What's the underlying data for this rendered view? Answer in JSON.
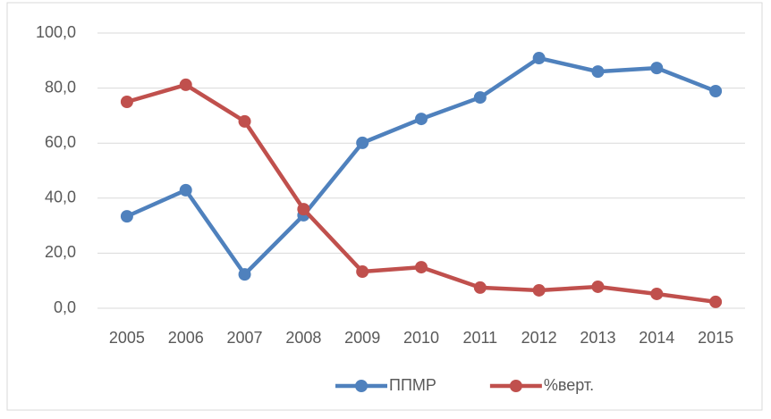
{
  "chart_data": {
    "type": "line",
    "categories": [
      "2005",
      "2006",
      "2007",
      "2008",
      "2009",
      "2010",
      "2011",
      "2012",
      "2013",
      "2014",
      "2015"
    ],
    "series": [
      {
        "name": "ППМР",
        "color": "#4f81bd",
        "values": [
          33.4,
          42.9,
          12.3,
          33.8,
          60.1,
          68.8,
          76.6,
          90.9,
          86.0,
          87.3,
          78.9
        ]
      },
      {
        "name": "%верт.",
        "color": "#c0504d",
        "values": [
          75.0,
          81.2,
          67.9,
          36.0,
          13.3,
          14.9,
          7.5,
          6.5,
          7.8,
          5.2,
          2.3
        ]
      }
    ],
    "ylim": [
      0,
      100
    ],
    "yticks": [
      {
        "value": 0,
        "label": "0,0"
      },
      {
        "value": 20,
        "label": "20,0"
      },
      {
        "value": 40,
        "label": "40,0"
      },
      {
        "value": 60,
        "label": "60,0"
      },
      {
        "value": 80,
        "label": "80,0"
      },
      {
        "value": 100,
        "label": "100,0"
      }
    ],
    "grid": true,
    "legend": "bottom"
  }
}
